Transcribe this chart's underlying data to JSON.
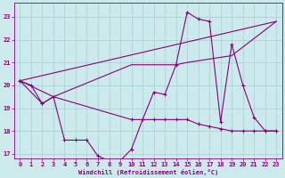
{
  "xlabel": "Windchill (Refroidissement éolien,°C)",
  "xlim": [
    -0.5,
    23.5
  ],
  "ylim": [
    16.8,
    23.6
  ],
  "yticks": [
    17,
    18,
    19,
    20,
    21,
    22,
    23
  ],
  "xticks": [
    0,
    1,
    2,
    3,
    4,
    5,
    6,
    7,
    8,
    9,
    10,
    11,
    12,
    13,
    14,
    15,
    16,
    17,
    18,
    19,
    20,
    21,
    22,
    23
  ],
  "bg_color": "#cce9ec",
  "grid_color": "#aad4d8",
  "line_color": "#880077",
  "series1_x": [
    0,
    1,
    2,
    3,
    4,
    5,
    6,
    7,
    8,
    9,
    10,
    11,
    12,
    13,
    14,
    15,
    16,
    17,
    18,
    19,
    20,
    21,
    22,
    23
  ],
  "series1_y": [
    20.2,
    20.0,
    19.2,
    19.5,
    17.6,
    17.6,
    17.6,
    16.9,
    16.7,
    16.7,
    17.2,
    18.5,
    19.7,
    19.6,
    20.9,
    23.2,
    22.9,
    22.8,
    18.4,
    21.8,
    20.0,
    18.6,
    18.0,
    18.0
  ],
  "series2_x": [
    0,
    2,
    3,
    10,
    11,
    12,
    13,
    14,
    15,
    16,
    17,
    18,
    19,
    20,
    21,
    22,
    23
  ],
  "series2_y": [
    20.2,
    19.2,
    19.5,
    18.5,
    18.5,
    18.5,
    18.5,
    18.5,
    18.5,
    18.3,
    18.2,
    18.1,
    18.0,
    18.0,
    18.0,
    18.0,
    18.0
  ],
  "series3_x": [
    0,
    23
  ],
  "series3_y": [
    20.2,
    22.8
  ],
  "series4_x": [
    0,
    3,
    10,
    14,
    15,
    19,
    23
  ],
  "series4_y": [
    20.2,
    19.5,
    20.9,
    20.9,
    21.0,
    21.3,
    22.8
  ]
}
